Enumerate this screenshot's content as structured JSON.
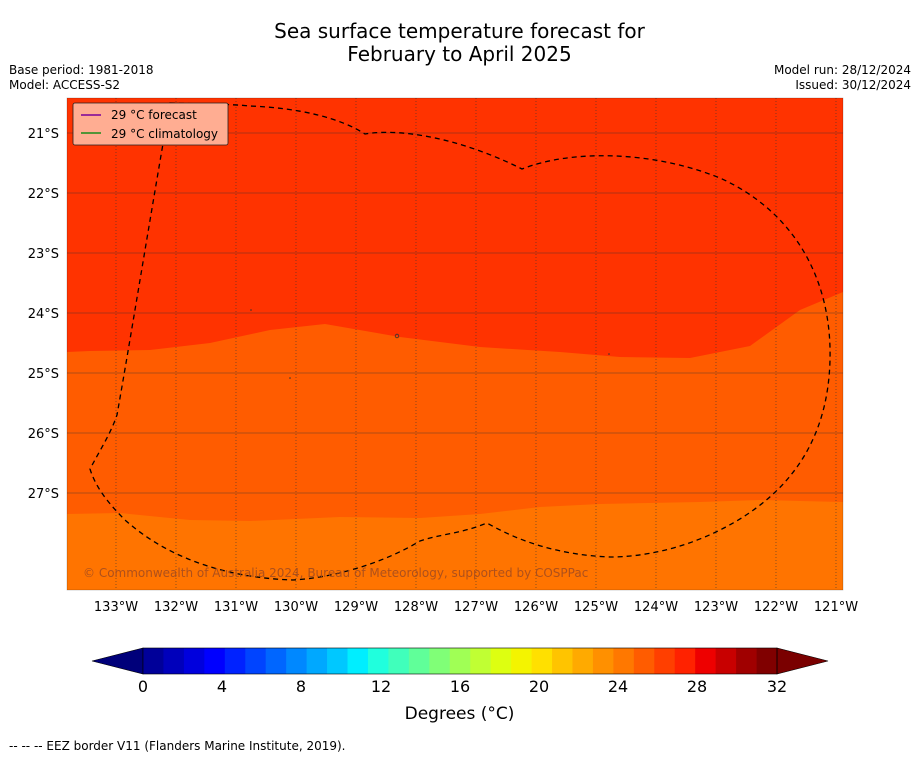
{
  "title": {
    "line1": "Sea surface temperature forecast for",
    "line2": "February to April 2025"
  },
  "meta": {
    "base_period": "Base period: 1981-2018",
    "model": "Model: ACCESS-S2",
    "model_run": "Model run: 28/12/2024",
    "issued": "Issued: 30/12/2024"
  },
  "map": {
    "lon_labels": [
      "133°W",
      "132°W",
      "131°W",
      "130°W",
      "129°W",
      "128°W",
      "127°W",
      "126°W",
      "125°W",
      "124°W",
      "123°W",
      "122°W",
      "121°W"
    ],
    "lat_labels": [
      "21°S",
      "22°S",
      "23°S",
      "24°S",
      "25°S",
      "26°S",
      "27°S"
    ],
    "colors": {
      "above_28": "#ff3300",
      "band_26_28": "#ff5c00",
      "band_24_26": "#ff7400",
      "gridline": "#333333",
      "eez_border": "#000000"
    },
    "watermark": "© Commonwealth of Australia 2024, Bureau of Meteorology, supported by COSPPac"
  },
  "legend": {
    "forecast_label": "29 °C  forecast",
    "forecast_color": "#7a0099",
    "climatology_label": "29 °C  climatology",
    "climatology_color": "#1a8c1a"
  },
  "colorbar": {
    "tick_labels": [
      "0",
      "4",
      "8",
      "12",
      "16",
      "20",
      "24",
      "28",
      "32"
    ],
    "colors": [
      "#000099",
      "#0000bb",
      "#0000dd",
      "#0000ff",
      "#0022ff",
      "#0044ff",
      "#0066ff",
      "#0088ff",
      "#00a8ff",
      "#00c8ff",
      "#00eeff",
      "#20ffdd",
      "#40ffbb",
      "#60ff99",
      "#80ff77",
      "#a0ff55",
      "#c0ff33",
      "#ddff11",
      "#f4f400",
      "#ffe000",
      "#ffc400",
      "#ffaa00",
      "#ff9000",
      "#ff7800",
      "#ff5c00",
      "#ff3f00",
      "#ff2200",
      "#ee0000",
      "#c80000",
      "#a00000",
      "#800000"
    ],
    "under_color": "#00007a",
    "over_color": "#7a0000",
    "unit_label": "Degrees (°C)"
  },
  "footnote": "-- -- -- EEZ border V11 (Flanders Marine Institute, 2019)."
}
